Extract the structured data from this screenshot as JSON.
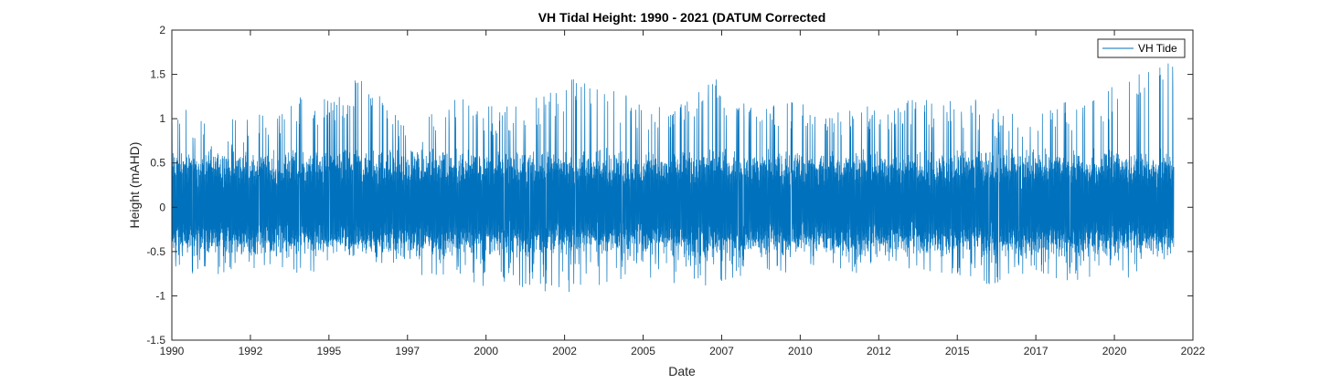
{
  "chart_data": {
    "type": "line",
    "title": "VH Tidal Height: 1990 - 2021 (DATUM Corrected",
    "xlabel": "Date",
    "ylabel": "Height (mAHD)",
    "xlim": [
      "1990",
      "2022"
    ],
    "ylim": [
      -1.5,
      2
    ],
    "x_ticks": [
      "1990",
      "1992",
      "1995",
      "1997",
      "2000",
      "2002",
      "2005",
      "2007",
      "2010",
      "2012",
      "2015",
      "2017",
      "2020",
      "2022"
    ],
    "y_ticks": [
      -1.5,
      -1,
      -0.5,
      0,
      0.5,
      1,
      1.5,
      2
    ],
    "y_tick_labels": [
      "-1.5",
      "-1",
      "-0.5",
      "0",
      "0.5",
      "1",
      "1.5",
      "2"
    ],
    "grid": false,
    "legend": {
      "placement": "top-right",
      "entries": [
        "VH Tide"
      ]
    },
    "series": [
      {
        "name": "VH Tide",
        "color": "#0072BD",
        "x": [
          "1990",
          "1991",
          "1992",
          "1993",
          "1994",
          "1995",
          "1996",
          "1997",
          "1998",
          "1999",
          "2000",
          "2001",
          "2002",
          "2003",
          "2004",
          "2005",
          "2006",
          "2007",
          "2008",
          "2009",
          "2010",
          "2011",
          "2012",
          "2013",
          "2014",
          "2015",
          "2016",
          "2017",
          "2018",
          "2019",
          "2020",
          "2021"
        ],
        "upper_envelope": [
          1.2,
          1.0,
          1.05,
          1.1,
          1.25,
          1.25,
          1.5,
          1.15,
          1.05,
          1.3,
          1.15,
          1.2,
          1.35,
          1.55,
          1.3,
          1.2,
          1.25,
          1.5,
          1.2,
          1.15,
          1.25,
          1.1,
          1.2,
          1.25,
          1.2,
          1.25,
          1.1,
          1.1,
          1.2,
          1.25,
          1.5,
          1.7
        ],
        "lower_envelope": [
          -0.75,
          -0.8,
          -0.7,
          -0.7,
          -0.75,
          -0.7,
          -0.6,
          -0.75,
          -0.8,
          -0.85,
          -0.9,
          -0.95,
          -1.0,
          -0.95,
          -0.85,
          -0.8,
          -0.9,
          -0.9,
          -0.8,
          -0.8,
          -0.7,
          -0.75,
          -0.75,
          -0.7,
          -0.75,
          -0.85,
          -0.9,
          -0.7,
          -0.85,
          -0.8,
          -0.8,
          -0.6
        ],
        "typical_range": [
          -0.45,
          0.55
        ]
      }
    ]
  }
}
